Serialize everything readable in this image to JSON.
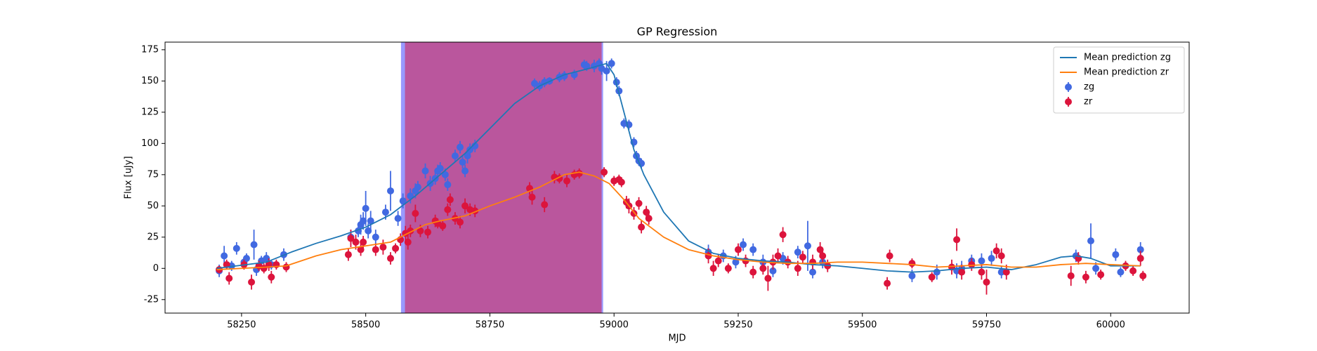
{
  "chart_data": {
    "type": "scatter",
    "title": "GP Regression",
    "xlabel": "MJD",
    "ylabel": "Flux [uJy]",
    "xlim": [
      58096,
      60158
    ],
    "ylim": [
      -35.8,
      181.1
    ],
    "xticks": [
      58250,
      58500,
      58750,
      59000,
      59250,
      59500,
      59750,
      60000
    ],
    "yticks": [
      -25,
      0,
      25,
      50,
      75,
      100,
      125,
      150,
      175
    ],
    "legend": "upper right",
    "spans": [
      {
        "xmin": 58571,
        "xmax": 58978,
        "color": "#0000ff",
        "alpha": 0.4
      },
      {
        "xmin": 58579,
        "xmax": 58975,
        "color": "#dc143c",
        "alpha": 0.5
      }
    ],
    "lines": [
      {
        "name": "Mean prediction zg",
        "color": "#1f77b4",
        "x": [
          58200,
          58300,
          58350,
          58400,
          58450,
          58500,
          58550,
          58600,
          58650,
          58700,
          58750,
          58800,
          58850,
          58900,
          58950,
          58985,
          59000,
          59020,
          59040,
          59060,
          59100,
          59150,
          59200,
          59250,
          59300,
          59350,
          59400,
          59450,
          59500,
          59550,
          59600,
          59650,
          59700,
          59750,
          59800,
          59850,
          59900,
          59930,
          59960,
          60000,
          60060
        ],
        "values": [
          0,
          5,
          13,
          20,
          26,
          33,
          43,
          58,
          75,
          92,
          112,
          132,
          146,
          155,
          160,
          164,
          155,
          125,
          95,
          75,
          45,
          22,
          12,
          8,
          6,
          5,
          3,
          2,
          0,
          -2,
          -3,
          -2,
          0,
          1,
          -1,
          3,
          9,
          10,
          8,
          2,
          2
        ]
      },
      {
        "name": "Mean prediction zr",
        "color": "#ff7f0e",
        "x": [
          58200,
          58300,
          58340,
          58400,
          58450,
          58500,
          58550,
          58580,
          58620,
          58650,
          58700,
          58750,
          58800,
          58850,
          58900,
          58930,
          58960,
          58990,
          59020,
          59050,
          59100,
          59150,
          59200,
          59250,
          59300,
          59350,
          59400,
          59450,
          59500,
          59550,
          59600,
          59650,
          59700,
          59750,
          59800,
          59850,
          59900,
          59950,
          60000,
          60060
        ],
        "values": [
          -1,
          1,
          2,
          10,
          15,
          18,
          21,
          27,
          35,
          38,
          42,
          50,
          57,
          65,
          75,
          77,
          74,
          68,
          55,
          40,
          25,
          15,
          10,
          7,
          5,
          4,
          4,
          5,
          5,
          4,
          3,
          1,
          2,
          3,
          1,
          1,
          3,
          4,
          3,
          2
        ]
      }
    ],
    "series": [
      {
        "name": "zg",
        "color": "#4169e1",
        "x": [
          58205,
          58215,
          58230,
          58240,
          58255,
          58260,
          58275,
          58280,
          58290,
          58300,
          58310,
          58335,
          58470,
          58485,
          58490,
          58495,
          58500,
          58505,
          58510,
          58520,
          58540,
          58550,
          58565,
          58575,
          58590,
          58600,
          58605,
          58620,
          58630,
          58640,
          58645,
          58650,
          58660,
          58665,
          58680,
          58690,
          58695,
          58700,
          58705,
          58710,
          58720,
          58840,
          58850,
          58860,
          58870,
          58890,
          58900,
          58920,
          58940,
          58945,
          58960,
          58970,
          58975,
          58985,
          58995,
          59005,
          59010,
          59020,
          59030,
          59040,
          59045,
          59050,
          59055,
          59190,
          59220,
          59245,
          59260,
          59280,
          59300,
          59320,
          59340,
          59370,
          59390,
          59400,
          59420,
          59600,
          59650,
          59690,
          59700,
          59720,
          59740,
          59760,
          59780,
          59930,
          59960,
          59970,
          60010,
          60020,
          60060
        ],
        "values": [
          -2,
          10,
          2,
          16,
          5,
          8,
          19,
          -1,
          6,
          8,
          3,
          11,
          25,
          30,
          35,
          38,
          48,
          30,
          38,
          25,
          45,
          62,
          40,
          54,
          58,
          62,
          65,
          78,
          68,
          72,
          78,
          80,
          75,
          67,
          90,
          97,
          85,
          78,
          90,
          95,
          98,
          148,
          146,
          149,
          150,
          153,
          154,
          155,
          163,
          162,
          162,
          164,
          160,
          158,
          164,
          149,
          142,
          116,
          115,
          101,
          90,
          86,
          84,
          13,
          10,
          5,
          19,
          15,
          5,
          -2,
          8,
          13,
          18,
          -3,
          5,
          -6,
          -3,
          -2,
          0,
          6,
          6,
          8,
          -3,
          10,
          22,
          0,
          11,
          -3,
          15
        ],
        "errors": [
          5,
          8,
          4,
          5,
          4,
          4,
          12,
          5,
          4,
          5,
          4,
          5,
          6,
          5,
          8,
          7,
          14,
          6,
          8,
          6,
          6,
          16,
          6,
          6,
          6,
          6,
          5,
          6,
          6,
          5,
          5,
          5,
          5,
          5,
          5,
          5,
          5,
          5,
          6,
          5,
          5,
          4,
          4,
          4,
          3,
          4,
          4,
          4,
          4,
          4,
          5,
          4,
          5,
          8,
          4,
          4,
          4,
          4,
          4,
          4,
          4,
          4,
          4,
          6,
          5,
          5,
          5,
          5,
          6,
          5,
          5,
          5,
          20,
          5,
          5,
          5,
          6,
          6,
          6,
          5,
          6,
          6,
          5,
          5,
          14,
          5,
          5,
          4,
          6
        ]
      },
      {
        "name": "zr",
        "color": "#dc143c",
        "x": [
          58205,
          58220,
          58225,
          58255,
          58270,
          58285,
          58295,
          58305,
          58310,
          58320,
          58340,
          58465,
          58470,
          58480,
          58490,
          58495,
          58520,
          58535,
          58550,
          58560,
          58570,
          58580,
          58585,
          58590,
          58600,
          58610,
          58625,
          58640,
          58645,
          58655,
          58665,
          58670,
          58680,
          58690,
          58700,
          58710,
          58720,
          58830,
          58835,
          58860,
          58880,
          58890,
          58905,
          58920,
          58930,
          58980,
          59000,
          59010,
          59015,
          59025,
          59030,
          59040,
          59050,
          59055,
          59065,
          59070,
          59190,
          59200,
          59210,
          59230,
          59250,
          59265,
          59280,
          59300,
          59310,
          59320,
          59330,
          59340,
          59350,
          59370,
          59380,
          59400,
          59415,
          59420,
          59430,
          59550,
          59555,
          59600,
          59640,
          59680,
          59690,
          59700,
          59720,
          59740,
          59750,
          59770,
          59780,
          59790,
          59920,
          59935,
          59950,
          59980,
          60030,
          60045,
          60060,
          60065
        ],
        "values": [
          -1,
          3,
          -8,
          3,
          -11,
          2,
          0,
          3,
          -7,
          3,
          1,
          11,
          24,
          21,
          15,
          21,
          15,
          17,
          8,
          16,
          23,
          28,
          21,
          30,
          44,
          30,
          29,
          38,
          36,
          34,
          47,
          55,
          40,
          37,
          50,
          47,
          46,
          64,
          57,
          51,
          73,
          72,
          70,
          75,
          76,
          77,
          70,
          71,
          69,
          53,
          50,
          44,
          52,
          33,
          45,
          40,
          10,
          0,
          6,
          0,
          15,
          6,
          -3,
          0,
          -8,
          5,
          10,
          27,
          5,
          0,
          9,
          5,
          15,
          10,
          2,
          -12,
          10,
          4,
          -7,
          1,
          23,
          -3,
          3,
          -3,
          -11,
          14,
          10,
          -3,
          -6,
          8,
          -7,
          -5,
          2,
          -2,
          8,
          -6
        ],
        "errors": [
          3,
          4,
          5,
          4,
          6,
          4,
          4,
          5,
          5,
          4,
          4,
          5,
          7,
          6,
          5,
          5,
          5,
          6,
          5,
          4,
          5,
          6,
          6,
          5,
          7,
          5,
          5,
          5,
          4,
          4,
          5,
          5,
          5,
          5,
          6,
          5,
          5,
          5,
          6,
          6,
          5,
          4,
          5,
          4,
          4,
          4,
          4,
          4,
          4,
          5,
          6,
          5,
          5,
          5,
          5,
          5,
          6,
          6,
          5,
          4,
          5,
          5,
          5,
          5,
          10,
          6,
          6,
          6,
          5,
          6,
          5,
          6,
          6,
          5,
          5,
          5,
          5,
          4,
          4,
          6,
          9,
          6,
          5,
          6,
          10,
          6,
          6,
          6,
          8,
          5,
          5,
          4,
          4,
          4,
          6,
          4
        ]
      }
    ]
  }
}
